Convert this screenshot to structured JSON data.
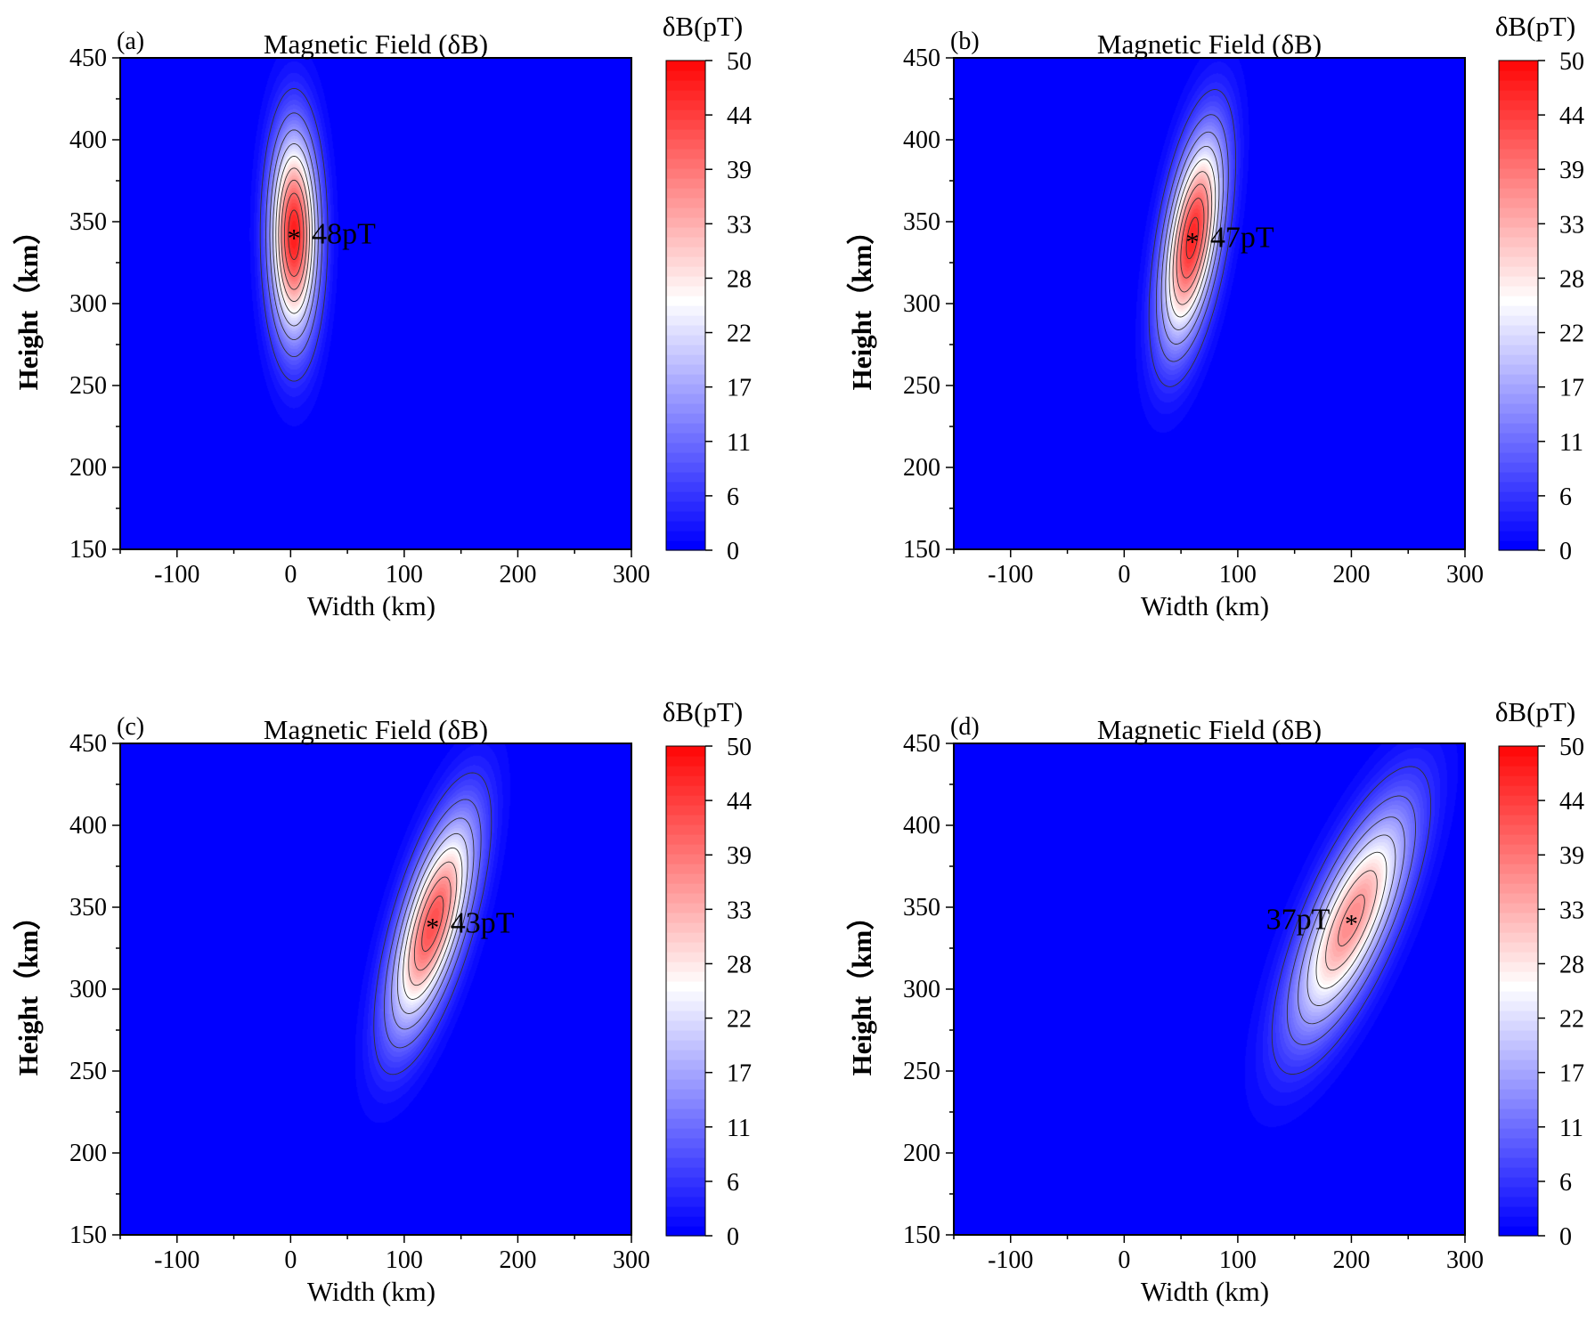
{
  "chart_data": [
    {
      "type": "heatmap",
      "panel_label": "(a)",
      "title": "Magnetic Field (δB)",
      "xlabel": "Width (km)",
      "ylabel": "Height（km）",
      "xlim": [
        -150,
        300
      ],
      "ylim": [
        150,
        450
      ],
      "xticks": [
        "-100",
        "0",
        "100",
        "200",
        "300"
      ],
      "yticks": [
        "150",
        "200",
        "250",
        "300",
        "350",
        "400",
        "450"
      ],
      "colorbar": {
        "title": "δB(pT)",
        "range": [
          0,
          50
        ],
        "ticks": [
          "0",
          "6",
          "11",
          "17",
          "22",
          "28",
          "33",
          "39",
          "44",
          "50"
        ]
      },
      "peak": {
        "x": 3,
        "y": 342,
        "value": 48,
        "label": "48pT",
        "label_side": "right"
      },
      "field_shape": {
        "sigma_major_km": 42,
        "sigma_minor_km": 14,
        "tilt_deg": 0
      },
      "contour_levels": [
        5,
        10,
        15,
        20,
        25,
        30,
        35,
        40,
        45
      ]
    },
    {
      "type": "heatmap",
      "panel_label": "(b)",
      "title": "Magnetic Field (δB)",
      "xlabel": "Width (km)",
      "ylabel": "Height（km）",
      "xlim": [
        -150,
        300
      ],
      "ylim": [
        150,
        450
      ],
      "xticks": [
        "-100",
        "0",
        "100",
        "200",
        "300"
      ],
      "yticks": [
        "150",
        "200",
        "250",
        "300",
        "350",
        "400",
        "450"
      ],
      "colorbar": {
        "title": "δB(pT)",
        "range": [
          0,
          50
        ],
        "ticks": [
          "0",
          "6",
          "11",
          "17",
          "22",
          "28",
          "33",
          "39",
          "44",
          "50"
        ]
      },
      "peak": {
        "x": 60,
        "y": 340,
        "value": 47,
        "label": "47pT",
        "label_side": "right"
      },
      "field_shape": {
        "sigma_major_km": 44,
        "sigma_minor_km": 15,
        "tilt_deg": 14
      },
      "contour_levels": [
        5,
        10,
        15,
        20,
        25,
        30,
        35,
        40,
        45
      ]
    },
    {
      "type": "heatmap",
      "panel_label": "(c)",
      "title": "Magnetic Field (δB)",
      "xlabel": "Width (km)",
      "ylabel": "Height（km）",
      "xlim": [
        -150,
        300
      ],
      "ylim": [
        150,
        450
      ],
      "xticks": [
        "-100",
        "0",
        "100",
        "200",
        "300"
      ],
      "yticks": [
        "150",
        "200",
        "250",
        "300",
        "350",
        "400",
        "450"
      ],
      "colorbar": {
        "title": "δB(pT)",
        "range": [
          0,
          50
        ],
        "ticks": [
          "0",
          "6",
          "11",
          "17",
          "22",
          "28",
          "33",
          "39",
          "44",
          "50"
        ]
      },
      "peak": {
        "x": 125,
        "y": 340,
        "value": 43,
        "label": "43pT",
        "label_side": "right"
      },
      "field_shape": {
        "sigma_major_km": 48,
        "sigma_minor_km": 17,
        "tilt_deg": 24
      },
      "contour_levels": [
        5,
        10,
        15,
        20,
        25,
        30,
        35,
        40
      ]
    },
    {
      "type": "heatmap",
      "panel_label": "(d)",
      "title": "Magnetic Field (δB)",
      "xlabel": "Width (km)",
      "ylabel": "Height（km）",
      "xlim": [
        -150,
        300
      ],
      "ylim": [
        150,
        450
      ],
      "xticks": [
        "-100",
        "0",
        "100",
        "200",
        "300"
      ],
      "yticks": [
        "150",
        "200",
        "250",
        "300",
        "350",
        "400",
        "450"
      ],
      "colorbar": {
        "title": "δB(pT)",
        "range": [
          0,
          50
        ],
        "ticks": [
          "0",
          "6",
          "11",
          "17",
          "22",
          "28",
          "33",
          "39",
          "44",
          "50"
        ]
      },
      "peak": {
        "x": 200,
        "y": 342,
        "value": 37,
        "label": "37pT",
        "label_side": "left"
      },
      "field_shape": {
        "sigma_major_km": 55,
        "sigma_minor_km": 20,
        "tilt_deg": 34
      },
      "contour_levels": [
        5,
        10,
        15,
        20,
        25,
        30,
        35
      ]
    }
  ],
  "colors": {
    "low": "#0000ff",
    "mid": "#ffffff",
    "high": "#ff0000",
    "contour": "#333333"
  }
}
